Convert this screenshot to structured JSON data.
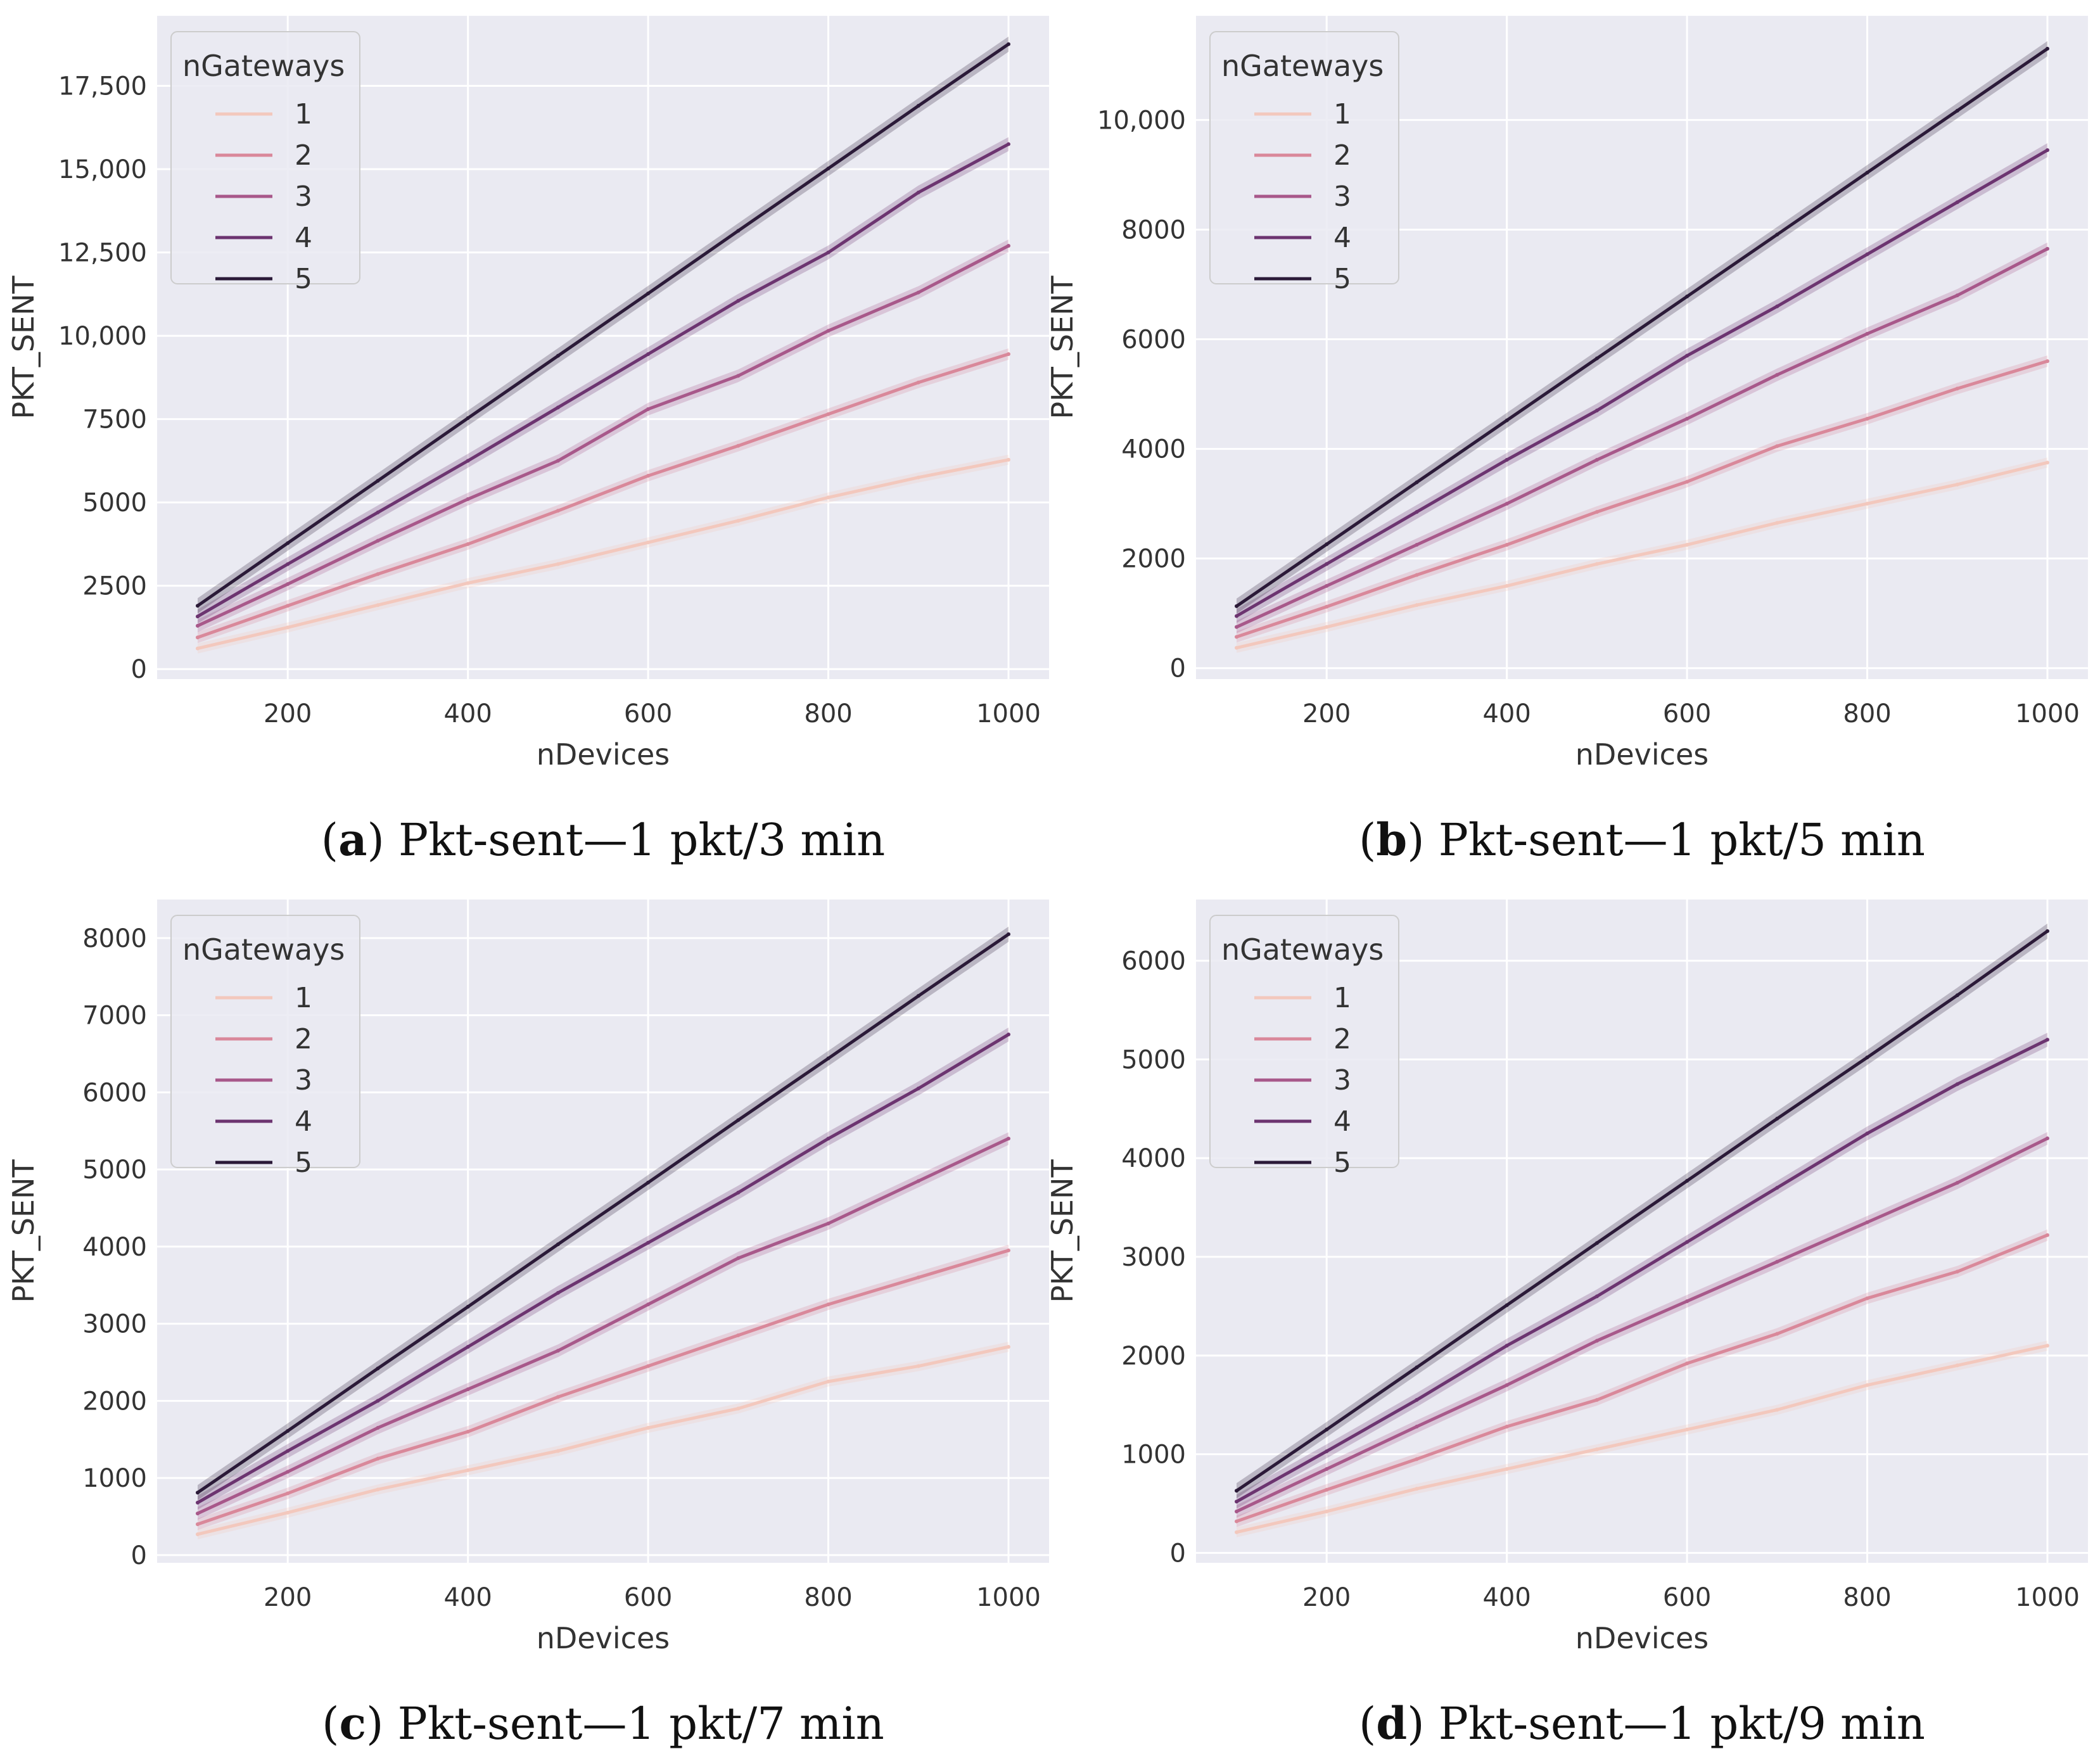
{
  "colors": {
    "panel_bg": "#eaeaf2",
    "grid": "#ffffff",
    "series": [
      "#f3c8bd",
      "#d9889a",
      "#a8588a",
      "#6c3470",
      "#2b1a38"
    ]
  },
  "chart_data": [
    {
      "type": "line",
      "letter": "a",
      "caption": "Pkt-sent—1 pkt/3 min",
      "xlabel": "nDevices",
      "ylabel": "PKT_SENT",
      "xlim": [
        55,
        1045
      ],
      "ylim": [
        -300,
        19600
      ],
      "xticks": [
        200,
        400,
        600,
        800,
        1000
      ],
      "yticks": [
        0,
        2500,
        5000,
        7500,
        10000,
        12500,
        15000,
        17500
      ],
      "ytick_labels": [
        "0",
        "2500",
        "5000",
        "7500",
        "10,000",
        "12,500",
        "15,000",
        "17,500"
      ],
      "legend_title": "nGateways",
      "x": [
        100,
        200,
        300,
        400,
        500,
        600,
        700,
        800,
        900,
        1000
      ],
      "series": [
        {
          "name": "1",
          "values": [
            620,
            1250,
            1920,
            2580,
            3150,
            3800,
            4450,
            5150,
            5750,
            6280
          ]
        },
        {
          "name": "2",
          "values": [
            950,
            1900,
            2850,
            3750,
            4750,
            5800,
            6700,
            7650,
            8600,
            9450
          ]
        },
        {
          "name": "3",
          "values": [
            1300,
            2550,
            3850,
            5100,
            6250,
            7800,
            8800,
            10150,
            11300,
            12700
          ]
        },
        {
          "name": "4",
          "values": [
            1580,
            3150,
            4700,
            6250,
            7850,
            9450,
            11050,
            12500,
            14300,
            15750
          ]
        },
        {
          "name": "5",
          "values": [
            1900,
            3780,
            5650,
            7530,
            9400,
            11270,
            13150,
            15020,
            16900,
            18750
          ]
        }
      ]
    },
    {
      "type": "line",
      "letter": "b",
      "caption": "Pkt-sent—1 pkt/5 min",
      "xlabel": "nDevices",
      "ylabel": "PKT_SENT",
      "xlim": [
        55,
        1045
      ],
      "ylim": [
        -200,
        11900
      ],
      "xticks": [
        200,
        400,
        600,
        800,
        1000
      ],
      "yticks": [
        0,
        2000,
        4000,
        6000,
        8000,
        10000
      ],
      "ytick_labels": [
        "0",
        "2000",
        "4000",
        "6000",
        "8000",
        "10,000"
      ],
      "legend_title": "nGateways",
      "x": [
        100,
        200,
        300,
        400,
        500,
        600,
        700,
        800,
        900,
        1000
      ],
      "series": [
        {
          "name": "1",
          "values": [
            370,
            750,
            1150,
            1500,
            1900,
            2250,
            2650,
            3000,
            3350,
            3750
          ]
        },
        {
          "name": "2",
          "values": [
            570,
            1120,
            1700,
            2250,
            2850,
            3400,
            4050,
            4550,
            5100,
            5600
          ]
        },
        {
          "name": "3",
          "values": [
            750,
            1500,
            2250,
            3000,
            3800,
            4550,
            5350,
            6100,
            6800,
            7650
          ]
        },
        {
          "name": "4",
          "values": [
            950,
            1900,
            2850,
            3800,
            4700,
            5700,
            6600,
            7550,
            8500,
            9450
          ]
        },
        {
          "name": "5",
          "values": [
            1130,
            2260,
            3390,
            4520,
            5650,
            6780,
            7910,
            9040,
            10170,
            11300
          ]
        }
      ]
    },
    {
      "type": "line",
      "letter": "c",
      "caption": "Pkt-sent—1 pkt/7 min",
      "xlabel": "nDevices",
      "ylabel": "PKT_SENT",
      "xlim": [
        55,
        1045
      ],
      "ylim": [
        -100,
        8500
      ],
      "xticks": [
        200,
        400,
        600,
        800,
        1000
      ],
      "yticks": [
        0,
        1000,
        2000,
        3000,
        4000,
        5000,
        6000,
        7000,
        8000
      ],
      "ytick_labels": [
        "0",
        "1000",
        "2000",
        "3000",
        "4000",
        "5000",
        "6000",
        "7000",
        "8000"
      ],
      "legend_title": "nGateways",
      "x": [
        100,
        200,
        300,
        400,
        500,
        600,
        700,
        800,
        900,
        1000
      ],
      "series": [
        {
          "name": "1",
          "values": [
            270,
            550,
            850,
            1100,
            1350,
            1650,
            1900,
            2250,
            2450,
            2700
          ]
        },
        {
          "name": "2",
          "values": [
            400,
            800,
            1250,
            1600,
            2050,
            2450,
            2850,
            3250,
            3600,
            3950
          ]
        },
        {
          "name": "3",
          "values": [
            540,
            1080,
            1650,
            2150,
            2650,
            3250,
            3850,
            4300,
            4850,
            5400
          ]
        },
        {
          "name": "4",
          "values": [
            680,
            1350,
            2000,
            2700,
            3400,
            4050,
            4700,
            5400,
            6050,
            6750
          ]
        },
        {
          "name": "5",
          "values": [
            810,
            1610,
            2420,
            3220,
            4030,
            4830,
            5640,
            6440,
            7250,
            8050
          ]
        }
      ]
    },
    {
      "type": "line",
      "letter": "d",
      "caption": "Pkt-sent—1 pkt/9 min",
      "xlabel": "nDevices",
      "ylabel": "PKT_SENT",
      "xlim": [
        55,
        1045
      ],
      "ylim": [
        -100,
        6620
      ],
      "xticks": [
        200,
        400,
        600,
        800,
        1000
      ],
      "yticks": [
        0,
        1000,
        2000,
        3000,
        4000,
        5000,
        6000
      ],
      "ytick_labels": [
        "0",
        "1000",
        "2000",
        "3000",
        "4000",
        "5000",
        "6000"
      ],
      "legend_title": "nGateways",
      "x": [
        100,
        200,
        300,
        400,
        500,
        600,
        700,
        800,
        900,
        1000
      ],
      "series": [
        {
          "name": "1",
          "values": [
            210,
            420,
            650,
            850,
            1050,
            1250,
            1450,
            1700,
            1900,
            2100
          ]
        },
        {
          "name": "2",
          "values": [
            320,
            640,
            950,
            1280,
            1550,
            1920,
            2220,
            2580,
            2850,
            3220
          ]
        },
        {
          "name": "3",
          "values": [
            420,
            850,
            1280,
            1700,
            2150,
            2550,
            2950,
            3350,
            3750,
            4200
          ]
        },
        {
          "name": "4",
          "values": [
            520,
            1030,
            1550,
            2100,
            2600,
            3150,
            3700,
            4250,
            4750,
            5200
          ]
        },
        {
          "name": "5",
          "values": [
            630,
            1250,
            1880,
            2510,
            3140,
            3770,
            4400,
            5020,
            5650,
            6300
          ]
        }
      ]
    }
  ]
}
